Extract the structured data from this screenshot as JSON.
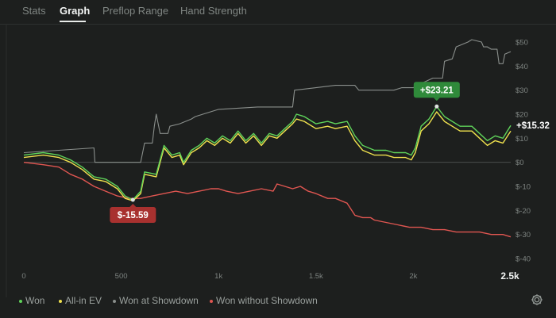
{
  "tabs": [
    "Stats",
    "Graph",
    "Preflop Range",
    "Hand Strength"
  ],
  "active_tab": "Graph",
  "chart_data": {
    "type": "line",
    "x_ticks": [
      "0",
      "500",
      "1k",
      "1.5k",
      "2k",
      "2.5k"
    ],
    "y_ticks": [
      "$50",
      "$40",
      "$30",
      "$20",
      "$10",
      "$0",
      "$-10",
      "$-20",
      "$-30",
      "$-40"
    ],
    "xlim": [
      0,
      2500
    ],
    "ylim": [
      -40,
      50
    ],
    "grid": true,
    "legend_position": "bottom",
    "series": [
      {
        "name": "Won",
        "color": "#5fd35a",
        "points": [
          [
            0,
            3
          ],
          [
            100,
            4
          ],
          [
            180,
            3
          ],
          [
            240,
            1
          ],
          [
            300,
            -2
          ],
          [
            360,
            -6
          ],
          [
            420,
            -7
          ],
          [
            480,
            -10
          ],
          [
            520,
            -14
          ],
          [
            560,
            -15.59
          ],
          [
            600,
            -12
          ],
          [
            620,
            -4
          ],
          [
            680,
            -5
          ],
          [
            720,
            7
          ],
          [
            760,
            3
          ],
          [
            800,
            4
          ],
          [
            820,
            0
          ],
          [
            860,
            5
          ],
          [
            900,
            7
          ],
          [
            940,
            10
          ],
          [
            980,
            8
          ],
          [
            1020,
            11
          ],
          [
            1060,
            9
          ],
          [
            1100,
            13
          ],
          [
            1140,
            9
          ],
          [
            1180,
            12
          ],
          [
            1220,
            8
          ],
          [
            1260,
            12
          ],
          [
            1300,
            11
          ],
          [
            1340,
            14
          ],
          [
            1380,
            17
          ],
          [
            1400,
            20
          ],
          [
            1440,
            19
          ],
          [
            1500,
            16
          ],
          [
            1560,
            17
          ],
          [
            1600,
            16
          ],
          [
            1660,
            17
          ],
          [
            1700,
            11
          ],
          [
            1740,
            7
          ],
          [
            1800,
            5
          ],
          [
            1860,
            5
          ],
          [
            1900,
            4
          ],
          [
            1960,
            4
          ],
          [
            1990,
            3
          ],
          [
            2010,
            6
          ],
          [
            2040,
            15
          ],
          [
            2080,
            18
          ],
          [
            2120,
            23.21
          ],
          [
            2160,
            19
          ],
          [
            2200,
            17
          ],
          [
            2240,
            15
          ],
          [
            2300,
            15
          ],
          [
            2340,
            12
          ],
          [
            2380,
            9
          ],
          [
            2420,
            11
          ],
          [
            2460,
            10
          ],
          [
            2500,
            15.32
          ]
        ]
      },
      {
        "name": "All-in EV",
        "color": "#f0e24e",
        "points": [
          [
            0,
            2
          ],
          [
            100,
            3
          ],
          [
            180,
            2
          ],
          [
            240,
            0
          ],
          [
            300,
            -3
          ],
          [
            360,
            -7
          ],
          [
            420,
            -8
          ],
          [
            480,
            -11
          ],
          [
            520,
            -15
          ],
          [
            560,
            -16
          ],
          [
            600,
            -13
          ],
          [
            620,
            -5
          ],
          [
            680,
            -6
          ],
          [
            720,
            6
          ],
          [
            760,
            2
          ],
          [
            800,
            3
          ],
          [
            820,
            -1
          ],
          [
            860,
            4
          ],
          [
            900,
            6
          ],
          [
            940,
            9
          ],
          [
            980,
            7
          ],
          [
            1020,
            10
          ],
          [
            1060,
            8
          ],
          [
            1100,
            12
          ],
          [
            1140,
            8
          ],
          [
            1180,
            11
          ],
          [
            1220,
            7
          ],
          [
            1260,
            11
          ],
          [
            1300,
            10
          ],
          [
            1340,
            13
          ],
          [
            1380,
            16
          ],
          [
            1400,
            18
          ],
          [
            1440,
            17
          ],
          [
            1500,
            14
          ],
          [
            1560,
            15
          ],
          [
            1600,
            14
          ],
          [
            1660,
            15
          ],
          [
            1700,
            9
          ],
          [
            1740,
            5
          ],
          [
            1800,
            3
          ],
          [
            1860,
            3
          ],
          [
            1900,
            2
          ],
          [
            1960,
            2
          ],
          [
            1990,
            1
          ],
          [
            2010,
            4
          ],
          [
            2040,
            13
          ],
          [
            2080,
            16
          ],
          [
            2120,
            21
          ],
          [
            2160,
            17
          ],
          [
            2200,
            15
          ],
          [
            2240,
            13
          ],
          [
            2300,
            13
          ],
          [
            2340,
            10
          ],
          [
            2380,
            7
          ],
          [
            2420,
            9
          ],
          [
            2460,
            8
          ],
          [
            2500,
            13
          ]
        ]
      },
      {
        "name": "Won at Showdown",
        "color": "#8a8f8c",
        "points": [
          [
            0,
            4
          ],
          [
            180,
            5
          ],
          [
            360,
            6
          ],
          [
            365,
            0
          ],
          [
            600,
            0
          ],
          [
            620,
            8
          ],
          [
            660,
            8
          ],
          [
            670,
            15
          ],
          [
            680,
            20
          ],
          [
            700,
            12
          ],
          [
            740,
            12
          ],
          [
            750,
            15
          ],
          [
            800,
            16
          ],
          [
            830,
            17
          ],
          [
            860,
            18
          ],
          [
            880,
            19
          ],
          [
            1000,
            22
          ],
          [
            1200,
            23
          ],
          [
            1380,
            23
          ],
          [
            1390,
            30
          ],
          [
            1500,
            31
          ],
          [
            1600,
            32
          ],
          [
            1700,
            32
          ],
          [
            1720,
            30
          ],
          [
            1900,
            30
          ],
          [
            1940,
            31
          ],
          [
            2000,
            31
          ],
          [
            2020,
            32
          ],
          [
            2100,
            35
          ],
          [
            2150,
            35
          ],
          [
            2160,
            42
          ],
          [
            2200,
            43
          ],
          [
            2220,
            48
          ],
          [
            2280,
            50
          ],
          [
            2300,
            51
          ],
          [
            2350,
            50
          ],
          [
            2360,
            48
          ],
          [
            2380,
            48
          ],
          [
            2400,
            47
          ],
          [
            2430,
            47
          ],
          [
            2440,
            41
          ],
          [
            2460,
            41
          ],
          [
            2470,
            45
          ],
          [
            2500,
            46
          ]
        ]
      },
      {
        "name": "Won without Showdown",
        "color": "#e05651",
        "points": [
          [
            0,
            0
          ],
          [
            100,
            -1
          ],
          [
            180,
            -2
          ],
          [
            240,
            -5
          ],
          [
            300,
            -7
          ],
          [
            360,
            -10
          ],
          [
            420,
            -12
          ],
          [
            480,
            -14
          ],
          [
            540,
            -15
          ],
          [
            600,
            -15
          ],
          [
            660,
            -14
          ],
          [
            720,
            -13
          ],
          [
            780,
            -12
          ],
          [
            840,
            -13
          ],
          [
            900,
            -12
          ],
          [
            960,
            -11
          ],
          [
            1000,
            -11
          ],
          [
            1040,
            -12
          ],
          [
            1100,
            -13
          ],
          [
            1160,
            -12
          ],
          [
            1220,
            -11
          ],
          [
            1280,
            -12
          ],
          [
            1300,
            -9
          ],
          [
            1340,
            -10
          ],
          [
            1380,
            -11
          ],
          [
            1420,
            -10
          ],
          [
            1460,
            -12
          ],
          [
            1500,
            -13
          ],
          [
            1560,
            -15
          ],
          [
            1600,
            -15
          ],
          [
            1660,
            -17
          ],
          [
            1700,
            -22
          ],
          [
            1740,
            -23
          ],
          [
            1780,
            -23
          ],
          [
            1800,
            -24
          ],
          [
            1860,
            -25
          ],
          [
            1920,
            -26
          ],
          [
            1980,
            -27
          ],
          [
            2040,
            -27
          ],
          [
            2100,
            -28
          ],
          [
            2160,
            -28
          ],
          [
            2220,
            -29
          ],
          [
            2280,
            -29
          ],
          [
            2340,
            -29
          ],
          [
            2400,
            -30
          ],
          [
            2460,
            -30
          ],
          [
            2500,
            -31
          ]
        ]
      }
    ],
    "annotations": [
      {
        "text": "+$23.21",
        "x": 2120,
        "y": 23.21,
        "color": "#2f8a3a"
      },
      {
        "text": "$-15.59",
        "x": 560,
        "y": -15.59,
        "color": "#a8312f"
      },
      {
        "text": "+$15.32",
        "x": 2500,
        "y": 15.32,
        "color": "#ffffff"
      }
    ]
  },
  "legend": [
    "Won",
    "All-in EV",
    "Won at Showdown",
    "Won without Showdown"
  ],
  "icons": {
    "settings": "gear-icon"
  }
}
